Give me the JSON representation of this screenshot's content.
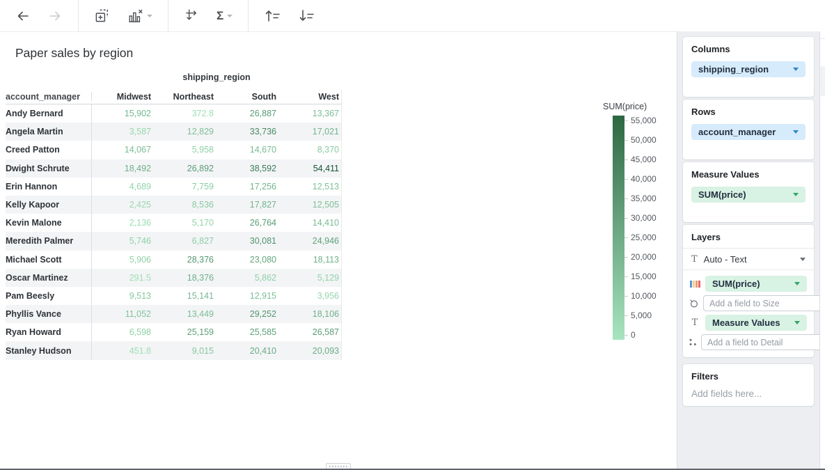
{
  "toolbar": {
    "icons": [
      "back",
      "forward",
      "add-visualization",
      "chart-remove",
      "swap-axes",
      "aggregate-sigma",
      "sort-ascending",
      "sort-descending"
    ],
    "sigma_label": "Σ"
  },
  "title": "Paper sales by region",
  "chart_data": {
    "type": "table",
    "title": "Paper sales by region",
    "column_group_label": "shipping_region",
    "row_header": "account_manager",
    "categories": [
      "Midwest",
      "Northeast",
      "South",
      "West"
    ],
    "rows": [
      {
        "name": "Andy Bernard",
        "values": [
          15902,
          372.8,
          26887,
          13367
        ],
        "display": [
          "15,902",
          "372.8",
          "26,887",
          "13,367"
        ]
      },
      {
        "name": "Angela Martin",
        "values": [
          3587,
          12829,
          33736,
          17021
        ],
        "display": [
          "3,587",
          "12,829",
          "33,736",
          "17,021"
        ]
      },
      {
        "name": "Creed Patton",
        "values": [
          14067,
          5958,
          14670,
          8370
        ],
        "display": [
          "14,067",
          "5,958",
          "14,670",
          "8,370"
        ]
      },
      {
        "name": "Dwight Schrute",
        "values": [
          18492,
          26892,
          38592,
          54411
        ],
        "display": [
          "18,492",
          "26,892",
          "38,592",
          "54,411"
        ]
      },
      {
        "name": "Erin Hannon",
        "values": [
          4689,
          7759,
          17256,
          12513
        ],
        "display": [
          "4,689",
          "7,759",
          "17,256",
          "12,513"
        ]
      },
      {
        "name": "Kelly Kapoor",
        "values": [
          2425,
          8536,
          17827,
          12505
        ],
        "display": [
          "2,425",
          "8,536",
          "17,827",
          "12,505"
        ]
      },
      {
        "name": "Kevin Malone",
        "values": [
          2136,
          5170,
          26764,
          14410
        ],
        "display": [
          "2,136",
          "5,170",
          "26,764",
          "14,410"
        ]
      },
      {
        "name": "Meredith Palmer",
        "values": [
          5746,
          6827,
          30081,
          24946
        ],
        "display": [
          "5,746",
          "6,827",
          "30,081",
          "24,946"
        ]
      },
      {
        "name": "Michael Scott",
        "values": [
          5906,
          28376,
          23080,
          18113
        ],
        "display": [
          "5,906",
          "28,376",
          "23,080",
          "18,113"
        ]
      },
      {
        "name": "Oscar Martinez",
        "values": [
          291.5,
          18376,
          5862,
          5129
        ],
        "display": [
          "291.5",
          "18,376",
          "5,862",
          "5,129"
        ]
      },
      {
        "name": "Pam Beesly",
        "values": [
          9513,
          15141,
          12915,
          3956
        ],
        "display": [
          "9,513",
          "15,141",
          "12,915",
          "3,956"
        ]
      },
      {
        "name": "Phyllis Vance",
        "values": [
          11052,
          13449,
          29252,
          18106
        ],
        "display": [
          "11,052",
          "13,449",
          "29,252",
          "18,106"
        ]
      },
      {
        "name": "Ryan Howard",
        "values": [
          6598,
          25159,
          25585,
          26587
        ],
        "display": [
          "6,598",
          "25,159",
          "25,585",
          "26,587"
        ]
      },
      {
        "name": "Stanley Hudson",
        "values": [
          451.8,
          9015,
          20410,
          20093
        ],
        "display": [
          "451.8",
          "9,015",
          "20,410",
          "20,093"
        ]
      }
    ],
    "legend": {
      "title": "SUM(price)",
      "min": 0,
      "max": 55000,
      "tick_step": 5000,
      "ticks": [
        "55,000",
        "50,000",
        "45,000",
        "40,000",
        "35,000",
        "30,000",
        "25,000",
        "20,000",
        "15,000",
        "10,000",
        "5,000",
        "0"
      ],
      "color_dark": "#0f5430",
      "color_light": "#9ee0b5"
    }
  },
  "sidebar": {
    "columns": {
      "label": "Columns",
      "pill": "shipping_region"
    },
    "rows": {
      "label": "Rows",
      "pill": "account_manager"
    },
    "measure_values": {
      "label": "Measure Values",
      "pill": "SUM(price)"
    },
    "layers": {
      "label": "Layers",
      "mode": "Auto - Text",
      "t_glyph": "T",
      "color_pill": "SUM(price)",
      "size_placeholder": "Add a field to Size",
      "text_pill": "Measure Values",
      "detail_placeholder": "Add a field to Detail"
    },
    "filters": {
      "label": "Filters",
      "placeholder": "Add fields here..."
    }
  },
  "colors": {
    "pill_blue_bg": "#d6ebfb",
    "pill_green_bg": "#d8f2e3",
    "caret_blue": "#2e86c9",
    "caret_green": "#2fa86b",
    "sidebar_bg": "#eceef2",
    "row_stripe": "#f3f4f6",
    "legend_gradient_top": "#2b6842",
    "legend_gradient_bottom": "#a8e4c0"
  }
}
